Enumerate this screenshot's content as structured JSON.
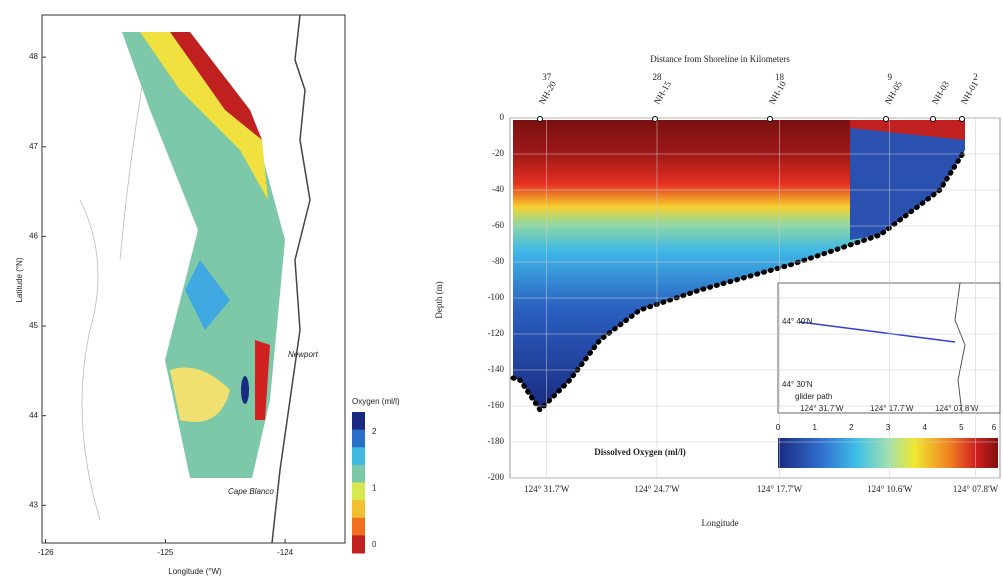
{
  "map": {
    "y_label": "Latitude (°N)",
    "x_label": "Longitude (°W)",
    "xlim": [
      -126.03,
      -123.5
    ],
    "ylim": [
      42.58,
      48.47
    ],
    "xticks": [
      -126,
      -125,
      -124
    ],
    "yticks": [
      43,
      44,
      45,
      46,
      47,
      48
    ],
    "annotations": [
      "Newport",
      "Cape Blanco"
    ],
    "colorbar": {
      "label": "Oxygen (ml/l)",
      "lim": [
        -0.14,
        2.35
      ],
      "ticks": [
        0,
        1,
        2
      ]
    }
  },
  "section": {
    "top_label": "Distance from Shoreline in Kilometers",
    "top_lim": [
      40,
      0
    ],
    "top_ticks": [
      37,
      28,
      18,
      9,
      2
    ],
    "stations": [
      "NH-20",
      "NH-15",
      "NH-10",
      "NH-05",
      "NH-03",
      "NH-01"
    ],
    "y_label": "Depth (m)",
    "ylim": [
      -200,
      0
    ],
    "yticks": [
      0,
      -20,
      -40,
      -60,
      -80,
      -100,
      -120,
      -140,
      -160,
      -180,
      -200
    ],
    "x_label": "Longitude",
    "x_tick_labels": [
      "124° 31.7'W",
      "124° 24.7'W",
      "124° 17.7'W",
      "124° 10.6'W",
      "124° 07.8'W"
    ],
    "colorbar": {
      "label": "Dissolved Oxygen (ml/l)",
      "lim": [
        0,
        6
      ],
      "ticks": [
        0,
        1,
        2,
        3,
        4,
        5,
        6
      ]
    },
    "inset": {
      "labels": [
        "44° 40'N",
        "44° 30'N",
        "glider path",
        "124° 31.7'W",
        "124° 17.7'W",
        "124° 07.8'W"
      ]
    }
  }
}
